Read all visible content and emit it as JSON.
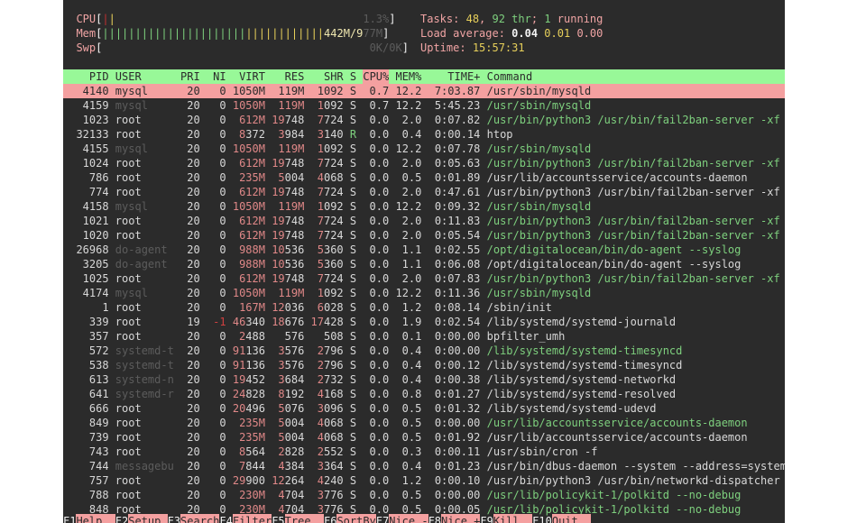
{
  "meters": {
    "cpu": {
      "label": "CPU",
      "value": "1.3%"
    },
    "mem": {
      "label": "Mem",
      "value_used": "442M/9",
      "value_rest": "77M",
      "used_fraction": 0.45
    },
    "swp": {
      "label": "Swp",
      "value": "0K/0K"
    }
  },
  "summary": {
    "tasks_label": "Tasks:",
    "tasks": "48",
    "threads": "92 thr",
    "sep": ";",
    "running": "1",
    "running_label": "running",
    "load_label": "Load average:",
    "load1": "0.04",
    "load5": "0.01",
    "load15": "0.00",
    "uptime_label": "Uptime:",
    "uptime": "15:57:31"
  },
  "columns": {
    "pid": "PID",
    "user": "USER",
    "pri": "PRI",
    "ni": "NI",
    "virt": "VIRT",
    "res": "RES",
    "shr": "SHR",
    "s": "S",
    "cpu": "CPU%",
    "mem": "MEM%",
    "time": "TIME+",
    "command": "Command"
  },
  "sort_column": "CPU%",
  "rows": [
    {
      "pid": "4140",
      "user": "mysql",
      "pri": "20",
      "ni": "0",
      "virt": "1050M",
      "res": "119M",
      "shr": "1092",
      "s": "S",
      "cpu": "0.7",
      "mem": "12.2",
      "time": "7:03.87",
      "command": "/usr/sbin/mysqld",
      "thread": false,
      "selected": true
    },
    {
      "pid": "4159",
      "user": "mysql",
      "pri": "20",
      "ni": "0",
      "virt": "1050M",
      "res": "119M",
      "shr": "1092",
      "s": "S",
      "cpu": "0.7",
      "mem": "12.2",
      "time": "5:45.23",
      "command": "/usr/sbin/mysqld",
      "thread": true
    },
    {
      "pid": "1023",
      "user": "root",
      "pri": "20",
      "ni": "0",
      "virt": "612M",
      "res": "19748",
      "shr": "7724",
      "s": "S",
      "cpu": "0.0",
      "mem": "2.0",
      "time": "0:07.82",
      "command": "/usr/bin/python3 /usr/bin/fail2ban-server -xf",
      "thread": true
    },
    {
      "pid": "32133",
      "user": "root",
      "pri": "20",
      "ni": "0",
      "virt": "8372",
      "res": "3984",
      "shr": "3140",
      "s": "R",
      "cpu": "0.0",
      "mem": "0.4",
      "time": "0:00.14",
      "command": "htop",
      "thread": false
    },
    {
      "pid": "4155",
      "user": "mysql",
      "pri": "20",
      "ni": "0",
      "virt": "1050M",
      "res": "119M",
      "shr": "1092",
      "s": "S",
      "cpu": "0.0",
      "mem": "12.2",
      "time": "0:07.78",
      "command": "/usr/sbin/mysqld",
      "thread": true
    },
    {
      "pid": "1024",
      "user": "root",
      "pri": "20",
      "ni": "0",
      "virt": "612M",
      "res": "19748",
      "shr": "7724",
      "s": "S",
      "cpu": "0.0",
      "mem": "2.0",
      "time": "0:05.63",
      "command": "/usr/bin/python3 /usr/bin/fail2ban-server -xf",
      "thread": true
    },
    {
      "pid": "786",
      "user": "root",
      "pri": "20",
      "ni": "0",
      "virt": "235M",
      "res": "5004",
      "shr": "4068",
      "s": "S",
      "cpu": "0.0",
      "mem": "0.5",
      "time": "0:01.89",
      "command": "/usr/lib/accountsservice/accounts-daemon",
      "thread": false
    },
    {
      "pid": "774",
      "user": "root",
      "pri": "20",
      "ni": "0",
      "virt": "612M",
      "res": "19748",
      "shr": "7724",
      "s": "S",
      "cpu": "0.0",
      "mem": "2.0",
      "time": "0:47.61",
      "command": "/usr/bin/python3 /usr/bin/fail2ban-server -xf",
      "thread": false
    },
    {
      "pid": "4158",
      "user": "mysql",
      "pri": "20",
      "ni": "0",
      "virt": "1050M",
      "res": "119M",
      "shr": "1092",
      "s": "S",
      "cpu": "0.0",
      "mem": "12.2",
      "time": "0:09.32",
      "command": "/usr/sbin/mysqld",
      "thread": true
    },
    {
      "pid": "1021",
      "user": "root",
      "pri": "20",
      "ni": "0",
      "virt": "612M",
      "res": "19748",
      "shr": "7724",
      "s": "S",
      "cpu": "0.0",
      "mem": "2.0",
      "time": "0:11.83",
      "command": "/usr/bin/python3 /usr/bin/fail2ban-server -xf",
      "thread": true
    },
    {
      "pid": "1020",
      "user": "root",
      "pri": "20",
      "ni": "0",
      "virt": "612M",
      "res": "19748",
      "shr": "7724",
      "s": "S",
      "cpu": "0.0",
      "mem": "2.0",
      "time": "0:05.54",
      "command": "/usr/bin/python3 /usr/bin/fail2ban-server -xf",
      "thread": true
    },
    {
      "pid": "26968",
      "user": "do-agent",
      "pri": "20",
      "ni": "0",
      "virt": "988M",
      "res": "10536",
      "shr": "5360",
      "s": "S",
      "cpu": "0.0",
      "mem": "1.1",
      "time": "0:02.55",
      "command": "/opt/digitalocean/bin/do-agent --syslog",
      "thread": true
    },
    {
      "pid": "3205",
      "user": "do-agent",
      "pri": "20",
      "ni": "0",
      "virt": "988M",
      "res": "10536",
      "shr": "5360",
      "s": "S",
      "cpu": "0.0",
      "mem": "1.1",
      "time": "0:06.08",
      "command": "/opt/digitalocean/bin/do-agent --syslog",
      "thread": false
    },
    {
      "pid": "1025",
      "user": "root",
      "pri": "20",
      "ni": "0",
      "virt": "612M",
      "res": "19748",
      "shr": "7724",
      "s": "S",
      "cpu": "0.0",
      "mem": "2.0",
      "time": "0:07.83",
      "command": "/usr/bin/python3 /usr/bin/fail2ban-server -xf",
      "thread": true
    },
    {
      "pid": "4174",
      "user": "mysql",
      "pri": "20",
      "ni": "0",
      "virt": "1050M",
      "res": "119M",
      "shr": "1092",
      "s": "S",
      "cpu": "0.0",
      "mem": "12.2",
      "time": "0:11.36",
      "command": "/usr/sbin/mysqld",
      "thread": true
    },
    {
      "pid": "1",
      "user": "root",
      "pri": "20",
      "ni": "0",
      "virt": "167M",
      "res": "12036",
      "shr": "6028",
      "s": "S",
      "cpu": "0.0",
      "mem": "1.2",
      "time": "0:08.14",
      "command": "/sbin/init",
      "thread": false
    },
    {
      "pid": "339",
      "user": "root",
      "pri": "19",
      "ni": "-1",
      "virt": "46340",
      "res": "18676",
      "shr": "17428",
      "s": "S",
      "cpu": "0.0",
      "mem": "1.9",
      "time": "0:02.54",
      "command": "/lib/systemd/systemd-journald",
      "thread": false
    },
    {
      "pid": "357",
      "user": "root",
      "pri": "20",
      "ni": "0",
      "virt": "2488",
      "res": "576",
      "shr": "508",
      "s": "S",
      "cpu": "0.0",
      "mem": "0.1",
      "time": "0:00.00",
      "command": "bpfilter_umh",
      "thread": false
    },
    {
      "pid": "572",
      "user": "systemd-t",
      "pri": "20",
      "ni": "0",
      "virt": "91136",
      "res": "3576",
      "shr": "2796",
      "s": "S",
      "cpu": "0.0",
      "mem": "0.4",
      "time": "0:00.00",
      "command": "/lib/systemd/systemd-timesyncd",
      "thread": true
    },
    {
      "pid": "538",
      "user": "systemd-t",
      "pri": "20",
      "ni": "0",
      "virt": "91136",
      "res": "3576",
      "shr": "2796",
      "s": "S",
      "cpu": "0.0",
      "mem": "0.4",
      "time": "0:00.12",
      "command": "/lib/systemd/systemd-timesyncd",
      "thread": false
    },
    {
      "pid": "613",
      "user": "systemd-n",
      "pri": "20",
      "ni": "0",
      "virt": "19452",
      "res": "3684",
      "shr": "2732",
      "s": "S",
      "cpu": "0.0",
      "mem": "0.4",
      "time": "0:00.38",
      "command": "/lib/systemd/systemd-networkd",
      "thread": false
    },
    {
      "pid": "641",
      "user": "systemd-r",
      "pri": "20",
      "ni": "0",
      "virt": "24828",
      "res": "8192",
      "shr": "4168",
      "s": "S",
      "cpu": "0.0",
      "mem": "0.8",
      "time": "0:01.27",
      "command": "/lib/systemd/systemd-resolved",
      "thread": false
    },
    {
      "pid": "666",
      "user": "root",
      "pri": "20",
      "ni": "0",
      "virt": "20496",
      "res": "5076",
      "shr": "3096",
      "s": "S",
      "cpu": "0.0",
      "mem": "0.5",
      "time": "0:01.32",
      "command": "/lib/systemd/systemd-udevd",
      "thread": false
    },
    {
      "pid": "849",
      "user": "root",
      "pri": "20",
      "ni": "0",
      "virt": "235M",
      "res": "5004",
      "shr": "4068",
      "s": "S",
      "cpu": "0.0",
      "mem": "0.5",
      "time": "0:00.00",
      "command": "/usr/lib/accountsservice/accounts-daemon",
      "thread": true
    },
    {
      "pid": "739",
      "user": "root",
      "pri": "20",
      "ni": "0",
      "virt": "235M",
      "res": "5004",
      "shr": "4068",
      "s": "S",
      "cpu": "0.0",
      "mem": "0.5",
      "time": "0:01.92",
      "command": "/usr/lib/accountsservice/accounts-daemon",
      "thread": false
    },
    {
      "pid": "743",
      "user": "root",
      "pri": "20",
      "ni": "0",
      "virt": "8564",
      "res": "2828",
      "shr": "2552",
      "s": "S",
      "cpu": "0.0",
      "mem": "0.3",
      "time": "0:00.11",
      "command": "/usr/sbin/cron -f",
      "thread": false
    },
    {
      "pid": "744",
      "user": "messagebu",
      "pri": "20",
      "ni": "0",
      "virt": "7844",
      "res": "4384",
      "shr": "3364",
      "s": "S",
      "cpu": "0.0",
      "mem": "0.4",
      "time": "0:01.23",
      "command": "/usr/bin/dbus-daemon --system --address=system",
      "thread": false
    },
    {
      "pid": "757",
      "user": "root",
      "pri": "20",
      "ni": "0",
      "virt": "29900",
      "res": "12264",
      "shr": "4240",
      "s": "S",
      "cpu": "0.0",
      "mem": "1.2",
      "time": "0:00.10",
      "command": "/usr/bin/python3 /usr/bin/networkd-dispatcher",
      "thread": false
    },
    {
      "pid": "788",
      "user": "root",
      "pri": "20",
      "ni": "0",
      "virt": "230M",
      "res": "4704",
      "shr": "3776",
      "s": "S",
      "cpu": "0.0",
      "mem": "0.5",
      "time": "0:00.00",
      "command": "/usr/lib/policykit-1/polkitd --no-debug",
      "thread": true
    },
    {
      "pid": "848",
      "user": "root",
      "pri": "20",
      "ni": "0",
      "virt": "230M",
      "res": "4704",
      "shr": "3776",
      "s": "S",
      "cpu": "0.0",
      "mem": "0.5",
      "time": "0:00.05",
      "command": "/usr/lib/policykit-1/polkitd --no-debug",
      "thread": true
    }
  ],
  "footer": [
    {
      "key": "F1",
      "label": "Help"
    },
    {
      "key": "F2",
      "label": "Setup"
    },
    {
      "key": "F3",
      "label": "Search"
    },
    {
      "key": "F4",
      "label": "Filter"
    },
    {
      "key": "F5",
      "label": "Tree"
    },
    {
      "key": "F6",
      "label": "SortBy"
    },
    {
      "key": "F7",
      "label": "Nice -"
    },
    {
      "key": "F8",
      "label": "Nice +"
    },
    {
      "key": "F9",
      "label": "Kill"
    },
    {
      "key": "F10",
      "label": "Quit"
    }
  ],
  "colors": {
    "background": "#2b2b2b",
    "header_bg": "#98f898",
    "selected_bg": "#f4a0a0",
    "thread_command": "#7ed07e",
    "label": "#f0a4a4",
    "highlight": "#e6cf5a"
  }
}
